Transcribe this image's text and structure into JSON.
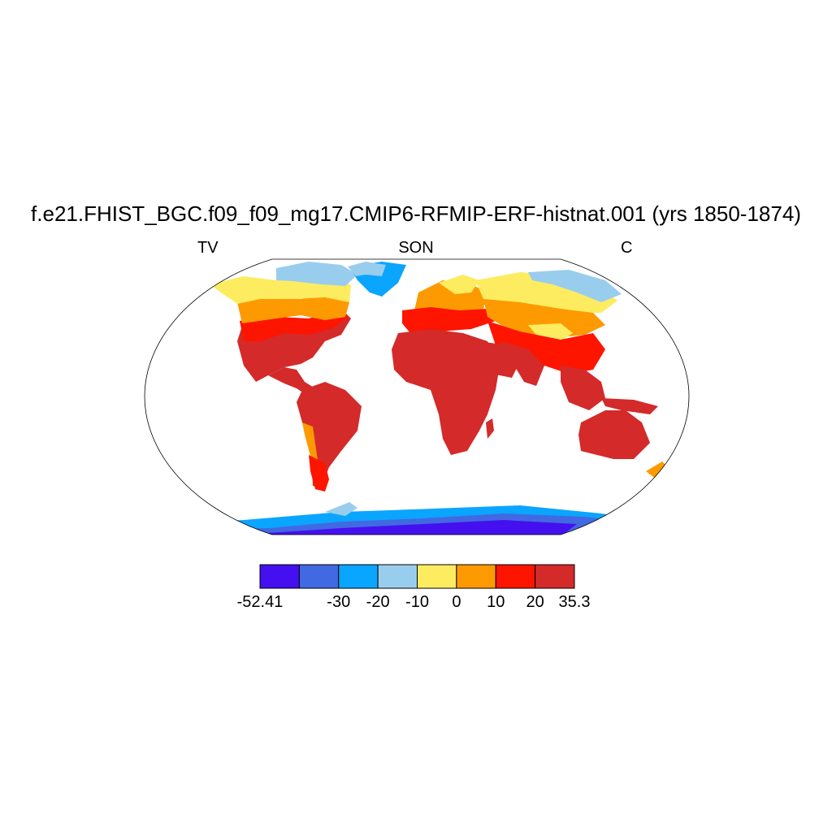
{
  "title": "f.e21.FHIST_BGC.f09_f09_mg17.CMIP6-RFMIP-ERF-histnat.001 (yrs 1850-1874)",
  "left_label": "TV",
  "center_label": "SON",
  "right_label": "C",
  "colorbar": {
    "min_label": "-52.41",
    "max_label": "35.3",
    "levels": [
      {
        "label": "-30",
        "position": 2
      },
      {
        "label": "-20",
        "position": 3
      },
      {
        "label": "-10",
        "position": 4
      },
      {
        "label": "0",
        "position": 5
      },
      {
        "label": "10",
        "position": 6
      },
      {
        "label": "20",
        "position": 7
      }
    ],
    "colors": [
      "#4410f0",
      "#4169e1",
      "#0aa5ff",
      "#99cdee",
      "#fdec60",
      "#fd9a02",
      "#fd1500",
      "#d42a2a"
    ]
  }
}
